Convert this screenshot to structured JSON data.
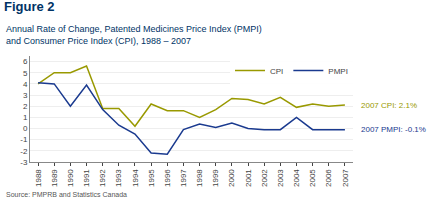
{
  "chart_data": {
    "type": "line",
    "title": "Figure 2",
    "subtitle": "Annual Rate of Change, Patented Medicines Price Index (PMPI)\nand Consumer Price Index (CPI), 1988 – 2007",
    "source": "Source: PMPRB and Statistics Canada",
    "x": [
      1988,
      1989,
      1990,
      1991,
      1992,
      1993,
      1994,
      1995,
      1996,
      1997,
      1998,
      1999,
      2000,
      2001,
      2002,
      2003,
      2004,
      2005,
      2006,
      2007
    ],
    "series": [
      {
        "name": "CPI",
        "color": "#999900",
        "values": [
          4.0,
          5.0,
          5.0,
          5.6,
          1.8,
          1.8,
          0.2,
          2.2,
          1.6,
          1.6,
          1.0,
          1.7,
          2.7,
          2.6,
          2.2,
          2.8,
          1.9,
          2.2,
          2.0,
          2.1
        ]
      },
      {
        "name": "PMPI",
        "color": "#1a3a8f",
        "values": [
          4.1,
          4.0,
          2.0,
          3.9,
          1.7,
          0.3,
          -0.5,
          -2.2,
          -2.3,
          -0.1,
          0.4,
          0.1,
          0.5,
          0.0,
          -0.1,
          -0.1,
          1.0,
          -0.1,
          -0.1,
          -0.1
        ]
      }
    ],
    "annotations": [
      "2007 CPI: 2.1%",
      "2007 PMPI: -0.1%"
    ],
    "xlim": [
      1987.5,
      2007.5
    ],
    "xticks": [
      1988,
      1989,
      1990,
      1991,
      1992,
      1993,
      1994,
      1995,
      1996,
      1997,
      1998,
      1999,
      2000,
      2001,
      2002,
      2003,
      2004,
      2005,
      2006,
      2007
    ],
    "ylim": [
      -3,
      6.5
    ],
    "yticks": [
      -3,
      -2,
      -1,
      0,
      1,
      2,
      3,
      4,
      5,
      6
    ],
    "grid": true,
    "legend": "upper right",
    "title_color": "#003366"
  }
}
